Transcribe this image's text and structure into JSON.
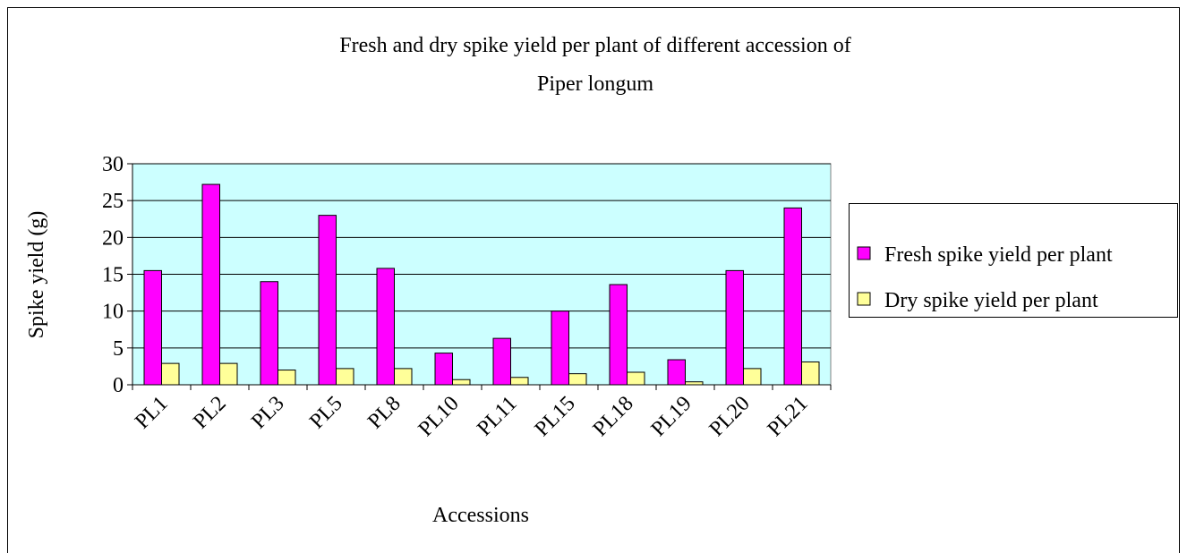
{
  "chart_data": {
    "type": "bar",
    "title": [
      "Fresh and dry spike yield per plant of different accession of",
      "Piper longum"
    ],
    "x_label": "Accessions",
    "y_label": "Spike yield (g)",
    "categories": [
      "PL1",
      "PL2",
      "PL3",
      "PL5",
      "PL8",
      "PL10",
      "PL11",
      "PL15",
      "PL18",
      "PL19",
      "PL20",
      "PL21"
    ],
    "series": [
      {
        "name": "Fresh spike yield per plant",
        "color": "#ff00ff",
        "values": [
          15.5,
          27.2,
          14,
          23,
          15.8,
          4.3,
          6.3,
          10,
          13.6,
          3.4,
          15.5,
          24
        ]
      },
      {
        "name": "Dry spike yield per plant",
        "color": "#ffff99",
        "values": [
          2.9,
          2.9,
          2,
          2.2,
          2.2,
          0.7,
          1,
          1.5,
          1.7,
          0.4,
          2.2,
          3.1
        ]
      }
    ],
    "ylim": [
      0,
      30
    ],
    "yticks": [
      0,
      5,
      10,
      15,
      20,
      25,
      30
    ],
    "grid": true,
    "plot_background": "#ccffff",
    "legend": "right"
  }
}
